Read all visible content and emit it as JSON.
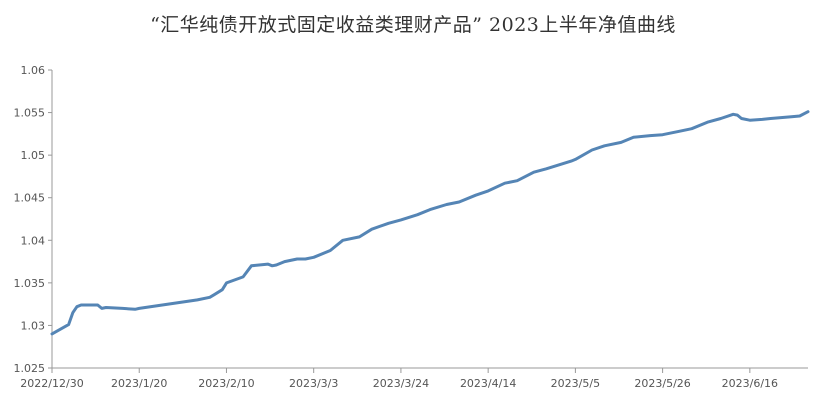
{
  "chart_data": {
    "type": "line",
    "title": "“汇华纯债开放式固定收益类理财产品” 2023上半年净值曲线",
    "xlabel": "",
    "ylabel": "",
    "ylim": [
      1.025,
      1.06
    ],
    "yticks": [
      "1.025",
      "1.03",
      "1.035",
      "1.04",
      "1.045",
      "1.05",
      "1.055",
      "1.06"
    ],
    "xlim": [
      "2022-12-30",
      "2023-06-30"
    ],
    "xticks": [
      {
        "date": "2022-12-30",
        "label": "2022/12/30"
      },
      {
        "date": "2023-01-20",
        "label": "2023/1/20"
      },
      {
        "date": "2023-02-10",
        "label": "2023/2/10"
      },
      {
        "date": "2023-03-03",
        "label": "2023/3/3"
      },
      {
        "date": "2023-03-24",
        "label": "2023/3/24"
      },
      {
        "date": "2023-04-14",
        "label": "2023/4/14"
      },
      {
        "date": "2023-05-05",
        "label": "2023/5/5"
      },
      {
        "date": "2023-05-26",
        "label": "2023/5/26"
      },
      {
        "date": "2023-06-16",
        "label": "2023/6/16"
      }
    ],
    "grid": false,
    "line_color": "#5585B5",
    "series": [
      {
        "points": [
          [
            "2022-12-30",
            1.029
          ],
          [
            "2023-01-03",
            1.0301
          ],
          [
            "2023-01-04",
            1.0315
          ],
          [
            "2023-01-05",
            1.0322
          ],
          [
            "2023-01-06",
            1.0324
          ],
          [
            "2023-01-09",
            1.0324
          ],
          [
            "2023-01-10",
            1.0324
          ],
          [
            "2023-01-11",
            1.032
          ],
          [
            "2023-01-12",
            1.0321
          ],
          [
            "2023-01-16",
            1.032
          ],
          [
            "2023-01-19",
            1.0319
          ],
          [
            "2023-01-20",
            1.032
          ],
          [
            "2023-01-27",
            1.0325
          ],
          [
            "2023-02-03",
            1.033
          ],
          [
            "2023-02-06",
            1.0333
          ],
          [
            "2023-02-07",
            1.0336
          ],
          [
            "2023-02-09",
            1.0342
          ],
          [
            "2023-02-10",
            1.035
          ],
          [
            "2023-02-14",
            1.0357
          ],
          [
            "2023-02-16",
            1.037
          ],
          [
            "2023-02-20",
            1.0372
          ],
          [
            "2023-02-21",
            1.037
          ],
          [
            "2023-02-22",
            1.0371
          ],
          [
            "2023-02-24",
            1.0375
          ],
          [
            "2023-02-27",
            1.0378
          ],
          [
            "2023-03-01",
            1.0378
          ],
          [
            "2023-03-03",
            1.038
          ],
          [
            "2023-03-07",
            1.0388
          ],
          [
            "2023-03-10",
            1.04
          ],
          [
            "2023-03-14",
            1.0404
          ],
          [
            "2023-03-17",
            1.0413
          ],
          [
            "2023-03-21",
            1.042
          ],
          [
            "2023-03-24",
            1.0424
          ],
          [
            "2023-03-28",
            1.043
          ],
          [
            "2023-03-31",
            1.0436
          ],
          [
            "2023-04-04",
            1.0442
          ],
          [
            "2023-04-07",
            1.0445
          ],
          [
            "2023-04-11",
            1.0453
          ],
          [
            "2023-04-14",
            1.0458
          ],
          [
            "2023-04-18",
            1.0467
          ],
          [
            "2023-04-21",
            1.047
          ],
          [
            "2023-04-25",
            1.048
          ],
          [
            "2023-04-28",
            1.0484
          ],
          [
            "2023-05-04",
            1.0493
          ],
          [
            "2023-05-05",
            1.0495
          ],
          [
            "2023-05-09",
            1.0506
          ],
          [
            "2023-05-12",
            1.0511
          ],
          [
            "2023-05-16",
            1.0515
          ],
          [
            "2023-05-19",
            1.0521
          ],
          [
            "2023-05-23",
            1.0523
          ],
          [
            "2023-05-26",
            1.0524
          ],
          [
            "2023-05-30",
            1.0528
          ],
          [
            "2023-06-02",
            1.0531
          ],
          [
            "2023-06-06",
            1.0539
          ],
          [
            "2023-06-09",
            1.0543
          ],
          [
            "2023-06-12",
            1.0548
          ],
          [
            "2023-06-13",
            1.0547
          ],
          [
            "2023-06-14",
            1.0543
          ],
          [
            "2023-06-16",
            1.0541
          ],
          [
            "2023-06-19",
            1.0542
          ],
          [
            "2023-06-21",
            1.0543
          ],
          [
            "2023-06-26",
            1.0545
          ],
          [
            "2023-06-28",
            1.0546
          ],
          [
            "2023-06-30",
            1.0551
          ]
        ]
      }
    ]
  }
}
